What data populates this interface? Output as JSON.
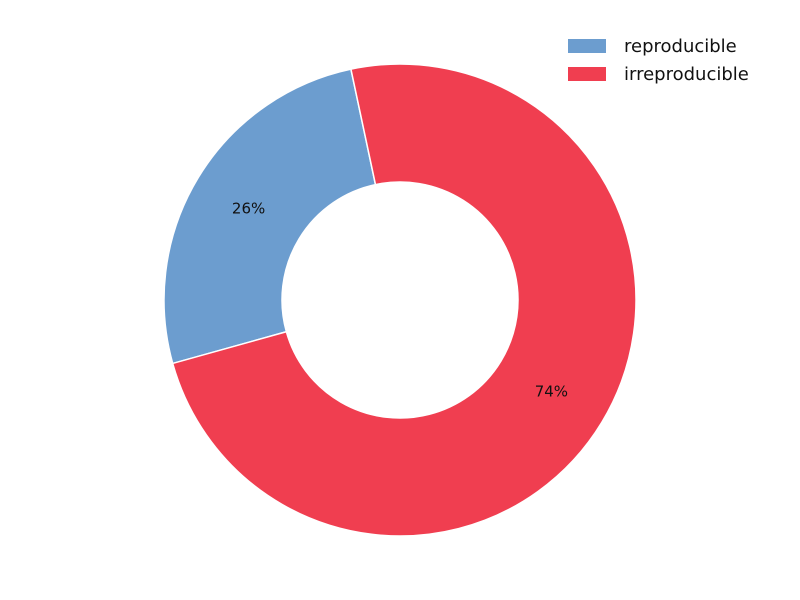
{
  "chart_data": {
    "type": "pie",
    "donut": true,
    "categories": [
      "reproducible",
      "irreproducible"
    ],
    "values": [
      26,
      74
    ],
    "percent_labels": [
      "26%",
      "74%"
    ],
    "colors": [
      "#6c9dcf",
      "#f03e50"
    ],
    "legend_position": "top-right",
    "title": ""
  }
}
